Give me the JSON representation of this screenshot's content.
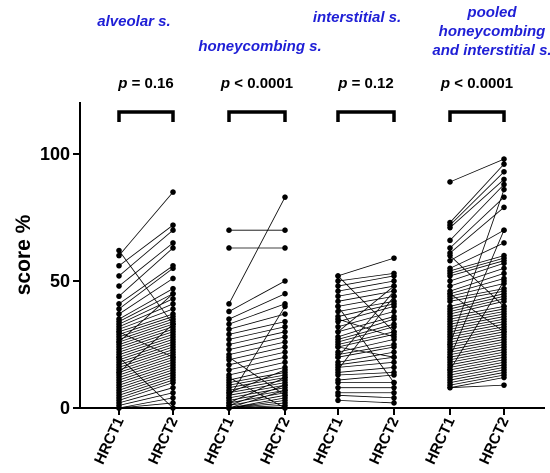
{
  "chart_data": {
    "type": "scatter",
    "ylabel": "score %",
    "ylim": [
      0,
      120
    ],
    "yticks": [
      0,
      50,
      100
    ],
    "groups": [
      {
        "title_lines": [
          "alveolar s."
        ],
        "p_symbol": "p",
        "p_text": " = 0.16",
        "x_labels": [
          "HRCT1",
          "HRCT2"
        ],
        "pairs": [
          [
            62,
            33
          ],
          [
            60,
            85
          ],
          [
            56,
            72
          ],
          [
            52,
            70
          ],
          [
            48,
            65
          ],
          [
            44,
            63
          ],
          [
            41,
            56
          ],
          [
            39,
            55
          ],
          [
            37,
            51
          ],
          [
            35,
            47
          ],
          [
            34,
            45
          ],
          [
            33,
            43
          ],
          [
            32,
            41
          ],
          [
            31,
            39
          ],
          [
            30,
            37
          ],
          [
            29,
            36
          ],
          [
            28,
            35
          ],
          [
            27,
            34
          ],
          [
            26,
            33
          ],
          [
            25,
            32
          ],
          [
            24,
            31
          ],
          [
            23,
            30
          ],
          [
            22,
            29
          ],
          [
            21,
            28
          ],
          [
            20,
            27
          ],
          [
            19,
            26
          ],
          [
            18,
            25
          ],
          [
            17,
            24
          ],
          [
            16,
            23
          ],
          [
            15,
            22
          ],
          [
            14,
            21
          ],
          [
            13,
            20
          ],
          [
            12,
            19
          ],
          [
            11,
            18
          ],
          [
            10,
            17
          ],
          [
            9,
            16
          ],
          [
            8,
            15
          ],
          [
            7,
            14
          ],
          [
            6,
            13
          ],
          [
            5,
            12
          ],
          [
            4,
            11
          ],
          [
            3,
            10
          ],
          [
            2,
            8
          ],
          [
            1,
            6
          ],
          [
            0,
            4
          ],
          [
            0,
            2
          ],
          [
            20,
            0
          ],
          [
            26,
            45
          ],
          [
            30,
            20
          ],
          [
            14,
            33
          ]
        ]
      },
      {
        "title_lines": [
          "honeycombing s."
        ],
        "p_symbol": "p",
        "p_text": " < 0.0001",
        "x_labels": [
          "HRCT1",
          "HRCT2"
        ],
        "pairs": [
          [
            70,
            70
          ],
          [
            63,
            63
          ],
          [
            41,
            83
          ],
          [
            38,
            50
          ],
          [
            35,
            45
          ],
          [
            33,
            41
          ],
          [
            31,
            37
          ],
          [
            29,
            34
          ],
          [
            27,
            32
          ],
          [
            25,
            30
          ],
          [
            23,
            28
          ],
          [
            21,
            26
          ],
          [
            19,
            24
          ],
          [
            17,
            22
          ],
          [
            15,
            20
          ],
          [
            13,
            18
          ],
          [
            11,
            16
          ],
          [
            10,
            14
          ],
          [
            9,
            13
          ],
          [
            8,
            12
          ],
          [
            7,
            11
          ],
          [
            6,
            10
          ],
          [
            5,
            9
          ],
          [
            4,
            8
          ],
          [
            3,
            7
          ],
          [
            2,
            6
          ],
          [
            1,
            5
          ],
          [
            0,
            4
          ],
          [
            0,
            3
          ],
          [
            0,
            2
          ],
          [
            0,
            1
          ],
          [
            0,
            0
          ],
          [
            12,
            0
          ],
          [
            20,
            5
          ],
          [
            4,
            40
          ],
          [
            2,
            12
          ],
          [
            1,
            9
          ],
          [
            0,
            7
          ],
          [
            6,
            15
          ]
        ]
      },
      {
        "title_lines": [
          "interstitial s."
        ],
        "p_symbol": "p",
        "p_text": " = 0.12",
        "x_labels": [
          "HRCT1",
          "HRCT2"
        ],
        "pairs": [
          [
            52,
            59
          ],
          [
            50,
            53
          ],
          [
            48,
            52
          ],
          [
            46,
            50
          ],
          [
            44,
            48
          ],
          [
            42,
            46
          ],
          [
            40,
            44
          ],
          [
            38,
            42
          ],
          [
            36,
            41
          ],
          [
            34,
            40
          ],
          [
            32,
            38
          ],
          [
            30,
            36
          ],
          [
            28,
            35
          ],
          [
            27,
            33
          ],
          [
            26,
            32
          ],
          [
            25,
            30
          ],
          [
            24,
            29
          ],
          [
            22,
            27
          ],
          [
            21,
            25
          ],
          [
            20,
            24
          ],
          [
            18,
            22
          ],
          [
            17,
            20
          ],
          [
            16,
            18
          ],
          [
            14,
            16
          ],
          [
            13,
            14
          ],
          [
            11,
            13
          ],
          [
            10,
            10
          ],
          [
            8,
            8
          ],
          [
            6,
            6
          ],
          [
            5,
            4
          ],
          [
            3,
            2
          ],
          [
            52,
            30
          ],
          [
            40,
            10
          ],
          [
            30,
            48
          ],
          [
            20,
            46
          ],
          [
            15,
            44
          ],
          [
            24,
            20
          ],
          [
            35,
            28
          ]
        ]
      },
      {
        "title_lines": [
          "pooled",
          "honeycombing",
          "and interstitial s."
        ],
        "p_symbol": "p",
        "p_text": " < 0.0001",
        "x_labels": [
          "HRCT1",
          "HRCT2"
        ],
        "pairs": [
          [
            89,
            98
          ],
          [
            73,
            96
          ],
          [
            72,
            93
          ],
          [
            71,
            90
          ],
          [
            66,
            88
          ],
          [
            63,
            83
          ],
          [
            61,
            79
          ],
          [
            58,
            70
          ],
          [
            55,
            65
          ],
          [
            54,
            60
          ],
          [
            53,
            59
          ],
          [
            52,
            58
          ],
          [
            50,
            57
          ],
          [
            48,
            55
          ],
          [
            46,
            53
          ],
          [
            45,
            51
          ],
          [
            44,
            49
          ],
          [
            43,
            47
          ],
          [
            42,
            46
          ],
          [
            40,
            45
          ],
          [
            39,
            44
          ],
          [
            38,
            43
          ],
          [
            37,
            42
          ],
          [
            36,
            40
          ],
          [
            35,
            39
          ],
          [
            34,
            38
          ],
          [
            33,
            37
          ],
          [
            32,
            36
          ],
          [
            31,
            35
          ],
          [
            30,
            34
          ],
          [
            29,
            33
          ],
          [
            28,
            32
          ],
          [
            27,
            31
          ],
          [
            26,
            30
          ],
          [
            25,
            29
          ],
          [
            24,
            28
          ],
          [
            23,
            27
          ],
          [
            22,
            26
          ],
          [
            21,
            25
          ],
          [
            20,
            24
          ],
          [
            19,
            23
          ],
          [
            18,
            22
          ],
          [
            17,
            21
          ],
          [
            16,
            20
          ],
          [
            15,
            19
          ],
          [
            14,
            18
          ],
          [
            13,
            17
          ],
          [
            12,
            16
          ],
          [
            11,
            15
          ],
          [
            10,
            14
          ],
          [
            9,
            13
          ],
          [
            8,
            12
          ],
          [
            8,
            9
          ],
          [
            20,
            70
          ],
          [
            25,
            86
          ],
          [
            60,
            40
          ],
          [
            45,
            30
          ],
          [
            15,
            50
          ]
        ]
      }
    ]
  }
}
